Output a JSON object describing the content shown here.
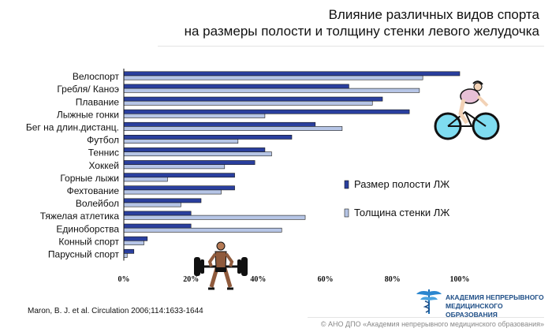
{
  "header": {
    "title_line1": "Влияние различных видов спорта",
    "title_line2": "на размеры полости и толщину стенки левого желудочка"
  },
  "chart_data": {
    "type": "bar",
    "orientation": "horizontal",
    "categories": [
      "Велоспорт",
      "Гребля/ Каноэ",
      "Плавание",
      "Лыжные гонки",
      "Бег на длин.дистанц.",
      "Футбол",
      "Теннис",
      "Хоккей",
      "Горные лыжи",
      "Фехтование",
      "Волейбол",
      "Тяжелая атлетика",
      "Единоборства",
      "Конный спорт",
      "Парусный спорт"
    ],
    "series": [
      {
        "name": "Размер полости ЛЖ",
        "color": "#2a3f9e",
        "values": [
          100,
          67,
          77,
          85,
          57,
          50,
          42,
          39,
          33,
          33,
          23,
          20,
          20,
          7,
          3
        ]
      },
      {
        "name": "Толщина стенки ЛЖ",
        "color": "#b6c5e6",
        "values": [
          89,
          88,
          74,
          42,
          65,
          34,
          44,
          30,
          13,
          29,
          17,
          54,
          47,
          6,
          1
        ]
      }
    ],
    "xlim": [
      0,
      100
    ],
    "xticks": [
      "0%",
      "20%",
      "40%",
      "60%",
      "80%",
      "100%"
    ],
    "legend_position": "right",
    "grid": false
  },
  "footer": {
    "citation": "Maron,  B. J. et al. Circulation 2006;114:1633-1644",
    "logo_line1": "АКАДЕМИЯ НЕПРЕРЫВНОГО",
    "logo_line2": "МЕДИЦИНСКОГО ОБРАЗОВАНИЯ",
    "copyright": "© АНО ДПО «Академия непрерывного медицинского образования»"
  },
  "icons": [
    "cyclist-icon",
    "weightlifter-icon",
    "caduceus-logo-icon"
  ]
}
